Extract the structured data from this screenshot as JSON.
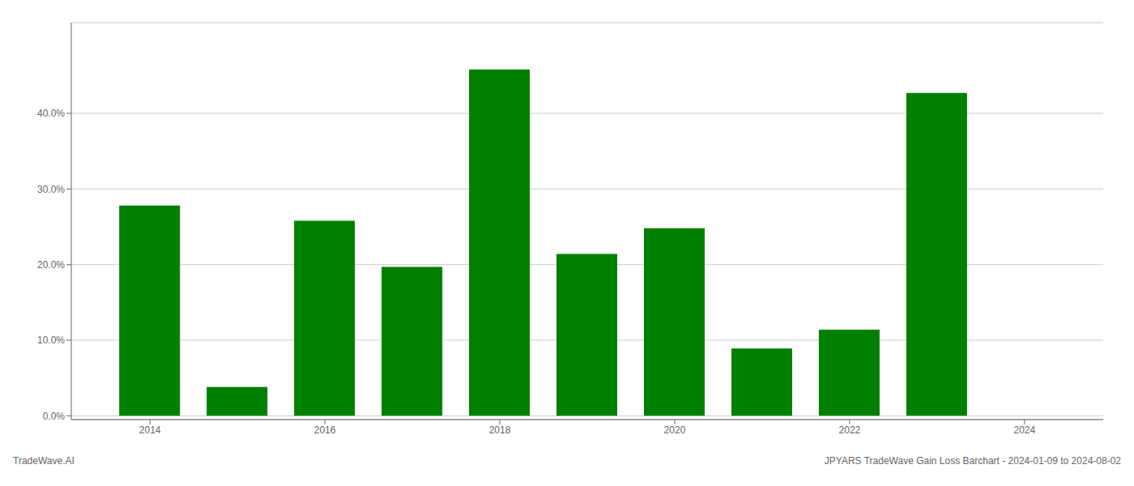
{
  "chart_data": {
    "type": "bar",
    "x": [
      2014,
      2015,
      2016,
      2017,
      2018,
      2019,
      2020,
      2021,
      2022,
      2023
    ],
    "values": [
      0.278,
      0.038,
      0.258,
      0.197,
      0.458,
      0.214,
      0.248,
      0.089,
      0.114,
      0.427
    ],
    "color": "#008000",
    "xlim": [
      2013.1,
      2024.9
    ],
    "xticks": [
      2014,
      2016,
      2018,
      2020,
      2022,
      2024
    ],
    "ylim": [
      -0.005,
      0.52
    ],
    "yticks": [
      {
        "value": 0.0,
        "label": "0.0%"
      },
      {
        "value": 0.1,
        "label": "10.0%"
      },
      {
        "value": 0.2,
        "label": "20.0%"
      },
      {
        "value": 0.3,
        "label": "30.0%"
      },
      {
        "value": 0.4,
        "label": "40.0%"
      }
    ],
    "grid": true,
    "annotations": [
      "TradeWave.AI",
      "JPYARS TradeWave Gain Loss Barchart - 2024-01-09 to 2024-08-02"
    ]
  }
}
